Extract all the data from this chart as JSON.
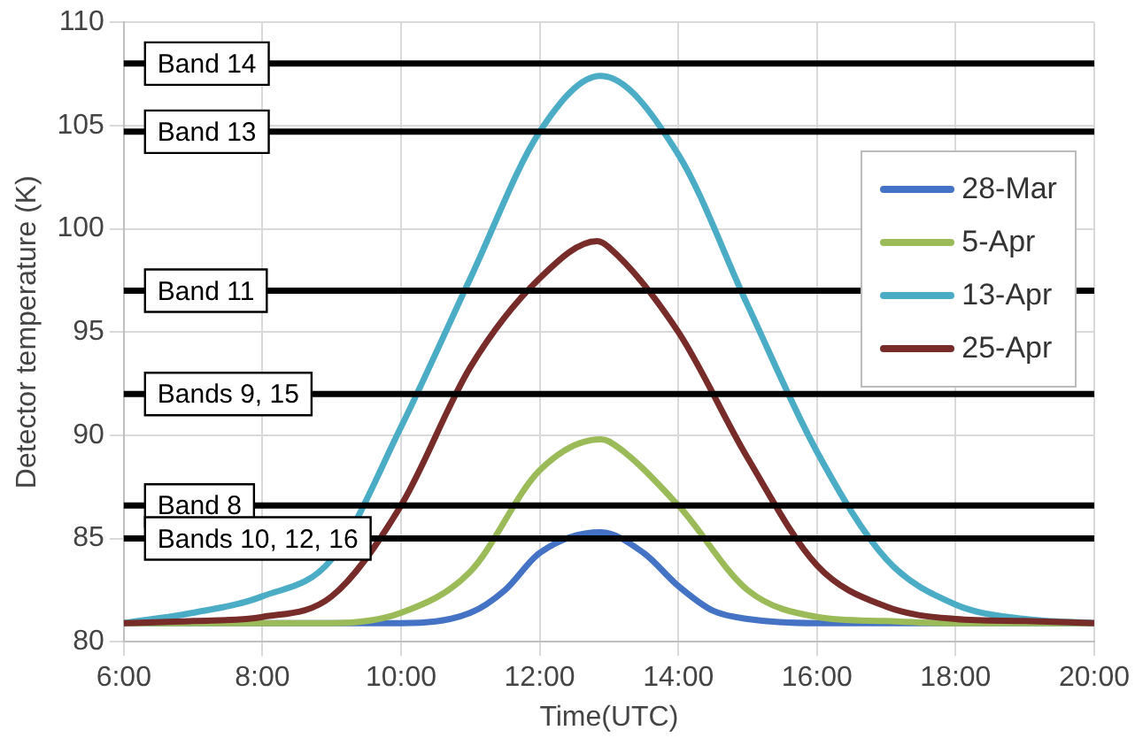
{
  "chart_data": {
    "type": "line",
    "xlabel": "Time(UTC)",
    "ylabel": "Detector temperature (K)",
    "xlim": [
      6,
      20
    ],
    "xticks": [
      {
        "value": 6,
        "label": "6:00"
      },
      {
        "value": 8,
        "label": "8:00"
      },
      {
        "value": 10,
        "label": "10:00"
      },
      {
        "value": 12,
        "label": "12:00"
      },
      {
        "value": 14,
        "label": "14:00"
      },
      {
        "value": 16,
        "label": "16:00"
      },
      {
        "value": 18,
        "label": "18:00"
      },
      {
        "value": 20,
        "label": "20:00"
      }
    ],
    "ylim": [
      80,
      110
    ],
    "yticks": [
      80,
      85,
      90,
      95,
      100,
      105,
      110
    ],
    "grid": true,
    "legend": "right",
    "marker": "none",
    "line_style": "solid",
    "series": [
      {
        "name": "28-Mar",
        "color": "#4472c4",
        "x": [
          6,
          8,
          10,
          11,
          11.5,
          12,
          12.88,
          13.5,
          14,
          14.5,
          15,
          16,
          18,
          20
        ],
        "values": [
          80.9,
          80.9,
          80.9,
          81.4,
          82.5,
          84.3,
          85.3,
          84.3,
          82.7,
          81.5,
          81.1,
          80.9,
          80.9,
          80.9
        ]
      },
      {
        "name": "5-Apr",
        "color": "#9bbb59",
        "x": [
          6,
          8,
          9,
          10,
          11,
          12,
          12.88,
          13,
          14,
          15,
          16,
          17,
          18,
          20
        ],
        "values": [
          80.9,
          80.9,
          80.9,
          81.4,
          83.4,
          88.3,
          89.8,
          89.7,
          86.6,
          82.5,
          81.2,
          81,
          80.9,
          80.9
        ]
      },
      {
        "name": "13-Apr",
        "color": "#4bacc6",
        "x": [
          6,
          7,
          8,
          9,
          10,
          11,
          12,
          12.88,
          14,
          15,
          16,
          17,
          18,
          19,
          20
        ],
        "values": [
          80.9,
          81.4,
          82.2,
          84,
          90.4,
          97.6,
          104.7,
          107.4,
          103.6,
          96.3,
          89.2,
          84,
          81.8,
          81.1,
          80.9
        ]
      },
      {
        "name": "25-Apr",
        "color": "#772c2a",
        "x": [
          6,
          7,
          8,
          9,
          10,
          11,
          12,
          12.83,
          13,
          14,
          15,
          16,
          17,
          18,
          19,
          20
        ],
        "values": [
          80.9,
          81,
          81.2,
          82.2,
          86.6,
          93.3,
          97.6,
          99.4,
          99.1,
          95,
          88.9,
          83.7,
          81.7,
          81.1,
          81,
          80.9
        ]
      }
    ],
    "ref_lines": [
      {
        "axis": "y",
        "value": 108,
        "label": "Band 14",
        "color": "#000000"
      },
      {
        "axis": "y",
        "value": 104.7,
        "label": "Band 13",
        "color": "#000000"
      },
      {
        "axis": "y",
        "value": 97,
        "label": "Band 11",
        "color": "#000000"
      },
      {
        "axis": "y",
        "value": 92,
        "label": "Bands 9, 15",
        "color": "#000000"
      },
      {
        "axis": "y",
        "value": 86.6,
        "label": "Band 8",
        "color": "#000000"
      },
      {
        "axis": "y",
        "value": 85,
        "label": "Bands 10, 12, 16",
        "color": "#000000"
      }
    ]
  }
}
